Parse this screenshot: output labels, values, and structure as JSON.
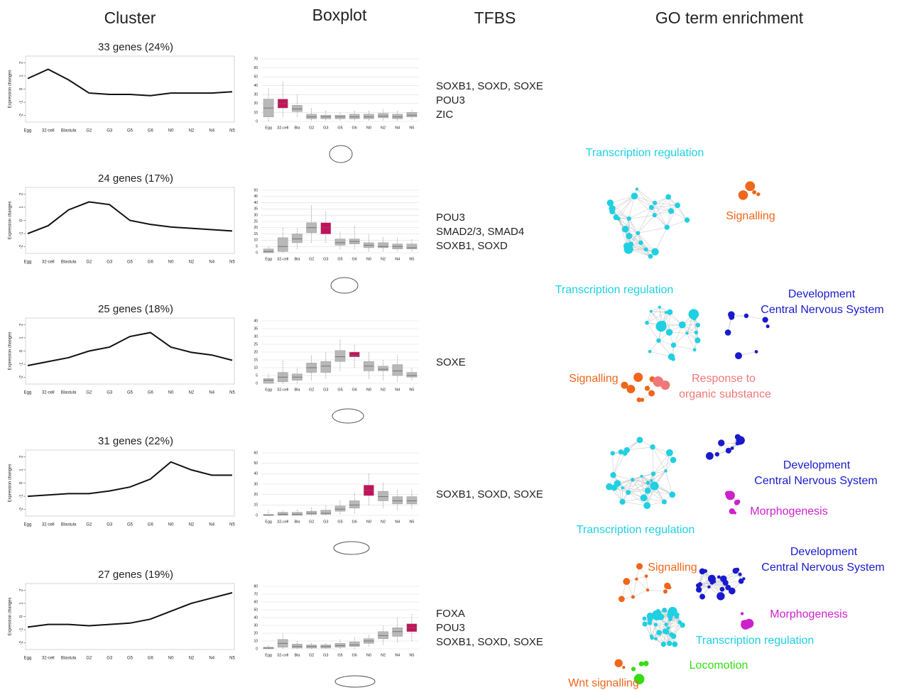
{
  "headers": [
    "Cluster",
    "Boxplot",
    "TFBS",
    "GO term enrichment"
  ],
  "line_stages": [
    "Egg",
    "32-cell",
    "Blastula",
    "G2",
    "G3",
    "G5",
    "G6",
    "N0",
    "N2",
    "N4",
    "N5"
  ],
  "box_stages": [
    "Egg",
    "32-cell",
    "Bla",
    "G2",
    "G3",
    "G5",
    "G6",
    "N0",
    "N2",
    "N4",
    "N5"
  ],
  "line_ylabel": "Expression changes",
  "line_ylim": [
    -2.5,
    2.5
  ],
  "line_yticks": [
    -2,
    -1,
    0,
    1,
    2
  ],
  "rows": [
    {
      "title": "33 genes (24%)",
      "mean": [
        0.8,
        1.5,
        0.7,
        -0.3,
        -0.4,
        -0.4,
        -0.5,
        -0.3,
        -0.3,
        -0.3,
        -0.2
      ],
      "box": {
        "ylim": [
          0,
          70
        ],
        "yticks": [
          0,
          10,
          20,
          30,
          40,
          50,
          60,
          70
        ],
        "highlight": 1,
        "lo": [
          0,
          5,
          5,
          1,
          1,
          1,
          1,
          1,
          1,
          1,
          2
        ],
        "q1": [
          5,
          15,
          11,
          3,
          3,
          3,
          3,
          3,
          4,
          3,
          5
        ],
        "median": [
          15,
          20,
          14,
          5,
          5,
          5,
          5,
          5,
          6,
          5,
          7
        ],
        "q3": [
          25,
          25,
          18,
          8,
          7,
          7,
          8,
          8,
          9,
          8,
          10
        ],
        "hi": [
          37,
          45,
          30,
          15,
          12,
          10,
          12,
          12,
          14,
          12,
          13
        ]
      },
      "tfbs": [
        "SOXB1, SOXD, SOXE",
        "POU3",
        "ZIC"
      ],
      "go": []
    },
    {
      "title": "24 genes (17%)",
      "mean": [
        -1,
        -0.4,
        0.8,
        1.4,
        1.2,
        0,
        -0.3,
        -0.5,
        -0.6,
        -0.7,
        -0.8
      ],
      "box": {
        "ylim": [
          0,
          50
        ],
        "yticks": [
          0,
          5,
          10,
          15,
          20,
          25,
          30,
          35,
          40,
          45,
          50
        ],
        "highlight": 4,
        "lo": [
          0,
          0,
          3,
          8,
          8,
          3,
          3,
          1,
          1,
          1,
          1
        ],
        "q1": [
          0,
          1,
          8,
          16,
          15,
          6,
          7,
          4,
          4,
          3,
          3
        ],
        "median": [
          1,
          5,
          11,
          20,
          20,
          8,
          9,
          6,
          5,
          5,
          4
        ],
        "q3": [
          3,
          12,
          15,
          24,
          24,
          11,
          11,
          8,
          8,
          7,
          7
        ],
        "hi": [
          5,
          20,
          20,
          38,
          33,
          17,
          22,
          15,
          13,
          13,
          11
        ]
      },
      "tfbs": [
        "POU3",
        "SMAD2/3, SMAD4",
        "SOXB1, SOXD"
      ],
      "go": [
        {
          "label": "Transcription regulation",
          "color": "#1fd0e2"
        },
        {
          "label": "Signalling",
          "color": "#f0661a"
        }
      ]
    },
    {
      "title": "25 genes (18%)",
      "mean": [
        -1.1,
        -0.8,
        -0.5,
        0,
        0.3,
        1.1,
        1.4,
        0.3,
        -0.1,
        -0.3,
        -0.7
      ],
      "box": {
        "ylim": [
          0,
          40
        ],
        "yticks": [
          0,
          5,
          10,
          15,
          20,
          25,
          30,
          35,
          40
        ],
        "highlight": 6,
        "lo": [
          0,
          0,
          0,
          2,
          3,
          8,
          10,
          3,
          2,
          1,
          2
        ],
        "q1": [
          0,
          1,
          2,
          7,
          7,
          14,
          17,
          8,
          8,
          5,
          4
        ],
        "median": [
          2,
          4,
          4,
          10,
          11,
          17,
          18,
          11,
          9,
          8,
          5
        ],
        "q3": [
          3,
          7,
          6,
          13,
          14,
          21,
          20,
          14,
          11,
          12,
          7
        ],
        "hi": [
          6,
          15,
          10,
          18,
          20,
          28,
          25,
          20,
          15,
          18,
          10
        ]
      },
      "tfbs": [
        "SOXE"
      ],
      "go": [
        {
          "label": "Transcription regulation",
          "color": "#1fd0e2"
        },
        {
          "label": "Development",
          "color": "#1a1acc"
        },
        {
          "label": "Central Nervous System",
          "color": "#1a1acc"
        },
        {
          "label": "Signalling",
          "color": "#f0661a"
        },
        {
          "label": "Response to",
          "color": "#f07878"
        },
        {
          "label": "organic substance",
          "color": "#f07878"
        }
      ]
    },
    {
      "title": "31 genes (22%)",
      "mean": [
        -1,
        -0.9,
        -0.8,
        -0.8,
        -0.6,
        -0.3,
        0.3,
        1.6,
        1,
        0.6,
        0.6
      ],
      "box": {
        "ylim": [
          0,
          60
        ],
        "yticks": [
          0,
          10,
          20,
          30,
          40,
          50,
          60
        ],
        "highlight": 7,
        "lo": [
          0,
          0,
          0,
          0,
          0,
          1,
          2,
          10,
          7,
          5,
          6
        ],
        "q1": [
          0,
          0,
          0,
          1,
          1,
          4,
          7,
          19,
          14,
          11,
          11
        ],
        "median": [
          0,
          1,
          1,
          2,
          2,
          6,
          10,
          24,
          18,
          14,
          14
        ],
        "q3": [
          1,
          3,
          3,
          4,
          5,
          9,
          14,
          29,
          23,
          18,
          18
        ],
        "hi": [
          5,
          5,
          6,
          8,
          10,
          15,
          22,
          40,
          32,
          25,
          25
        ]
      },
      "tfbs": [
        "SOXB1, SOXD, SOXE"
      ],
      "go": [
        {
          "label": "Development",
          "color": "#1a1acc"
        },
        {
          "label": "Central Nervous System",
          "color": "#1a1acc"
        },
        {
          "label": "Morphogenesis",
          "color": "#cc22cc"
        },
        {
          "label": "Transcription regulation",
          "color": "#1fd0e2"
        }
      ]
    },
    {
      "title": "27 genes (19%)",
      "mean": [
        -0.8,
        -0.6,
        -0.6,
        -0.7,
        -0.6,
        -0.5,
        -0.2,
        0.4,
        1,
        1.4,
        1.8
      ],
      "box": {
        "ylim": [
          0,
          80
        ],
        "yticks": [
          0,
          10,
          20,
          30,
          40,
          50,
          60,
          70,
          80
        ],
        "highlight": 10,
        "lo": [
          0,
          0,
          0,
          0,
          0,
          0,
          0,
          3,
          5,
          8,
          10
        ],
        "q1": [
          0,
          2,
          1,
          1,
          1,
          2,
          3,
          7,
          13,
          16,
          22
        ],
        "median": [
          1,
          7,
          3,
          3,
          3,
          4,
          5,
          10,
          17,
          22,
          27
        ],
        "q3": [
          2,
          12,
          6,
          5,
          5,
          7,
          9,
          13,
          22,
          27,
          32
        ],
        "hi": [
          5,
          20,
          10,
          8,
          8,
          12,
          15,
          18,
          30,
          40,
          45
        ]
      },
      "tfbs": [
        "FOXA",
        "POU3",
        "SOXB1, SOXD, SOXE"
      ],
      "go": [
        {
          "label": "Development",
          "color": "#1a1acc"
        },
        {
          "label": "Central Nervous System",
          "color": "#1a1acc"
        },
        {
          "label": "Signalling",
          "color": "#f0661a"
        },
        {
          "label": "Morphogenesis",
          "color": "#cc22cc"
        },
        {
          "label": "Transcription regulation",
          "color": "#1fd0e2"
        },
        {
          "label": "Locomotion",
          "color": "#33dd11"
        },
        {
          "label": "Wnt signalling",
          "color": "#f0661a"
        }
      ]
    }
  ]
}
